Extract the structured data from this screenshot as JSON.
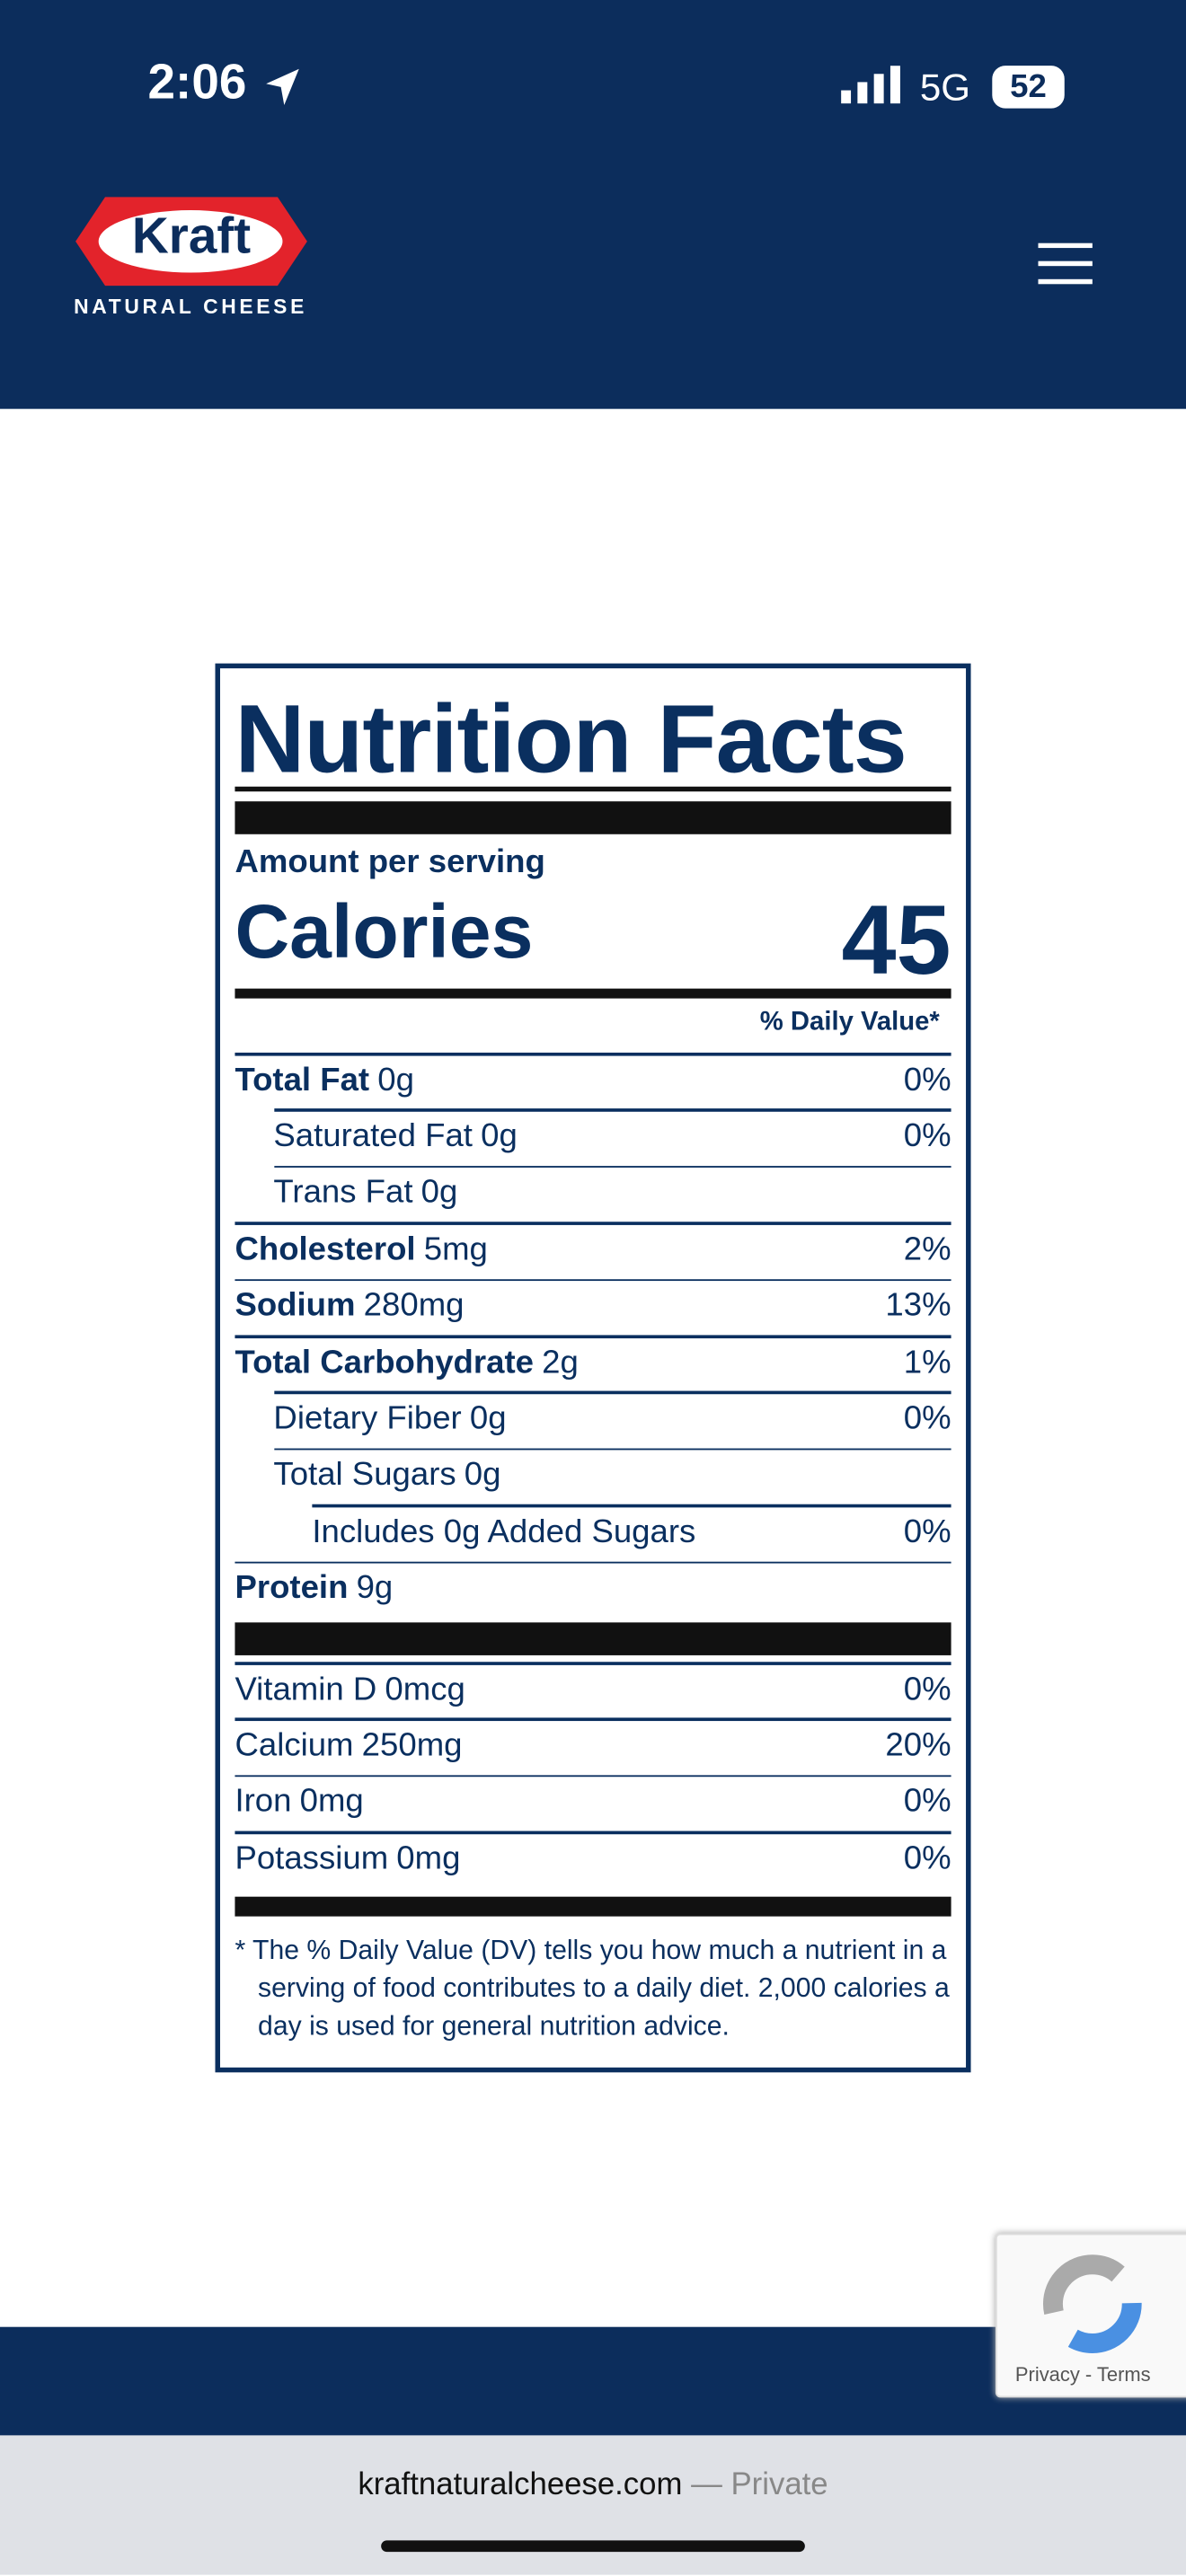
{
  "status": {
    "time": "2:06",
    "network": "5G",
    "battery": "52"
  },
  "header": {
    "brand": "Kraft",
    "tagline": "NATURAL CHEESE"
  },
  "label": {
    "title": "Nutrition Facts",
    "amount_label": "Amount per serving",
    "calories_label": "Calories",
    "calories": "45",
    "dv_header": "% Daily Value*",
    "nutrients": [
      {
        "name": "Total Fat",
        "amount": "0g",
        "dv": "0%",
        "sub": [
          {
            "name": "Saturated Fat",
            "amount": "0g",
            "dv": "0%"
          },
          {
            "name": "Trans Fat",
            "amount": "0g"
          }
        ]
      },
      {
        "name": "Cholesterol",
        "amount": "5mg",
        "dv": "2%"
      },
      {
        "name": "Sodium",
        "amount": "280mg",
        "dv": "13%"
      },
      {
        "name": "Total Carbohydrate",
        "amount": "2g",
        "dv": "1%",
        "sub": [
          {
            "name": "Dietary Fiber",
            "amount": "0g",
            "dv": "0%"
          },
          {
            "name": "Total Sugars",
            "amount": "0g",
            "sub": [
              {
                "name": "Includes 0g Added Sugars",
                "dv": "0%"
              }
            ]
          }
        ]
      },
      {
        "name": "Protein",
        "amount": "9g"
      }
    ],
    "vitamins": [
      {
        "name": "Vitamin D",
        "amount": "0mcg",
        "dv": "0%"
      },
      {
        "name": "Calcium",
        "amount": "250mg",
        "dv": "20%"
      },
      {
        "name": "Iron",
        "amount": "0mg",
        "dv": "0%"
      },
      {
        "name": "Potassium",
        "amount": "0mg",
        "dv": "0%"
      }
    ],
    "footnote": "* The % Daily Value (DV) tells you how much a nutrient in a serving of food contributes to a daily diet. 2,000 calories a day is used for general nutrition advice."
  },
  "recaptcha": "Privacy - Terms",
  "browser": {
    "url": "kraftnaturalcheese.com",
    "mode": "— Private"
  }
}
